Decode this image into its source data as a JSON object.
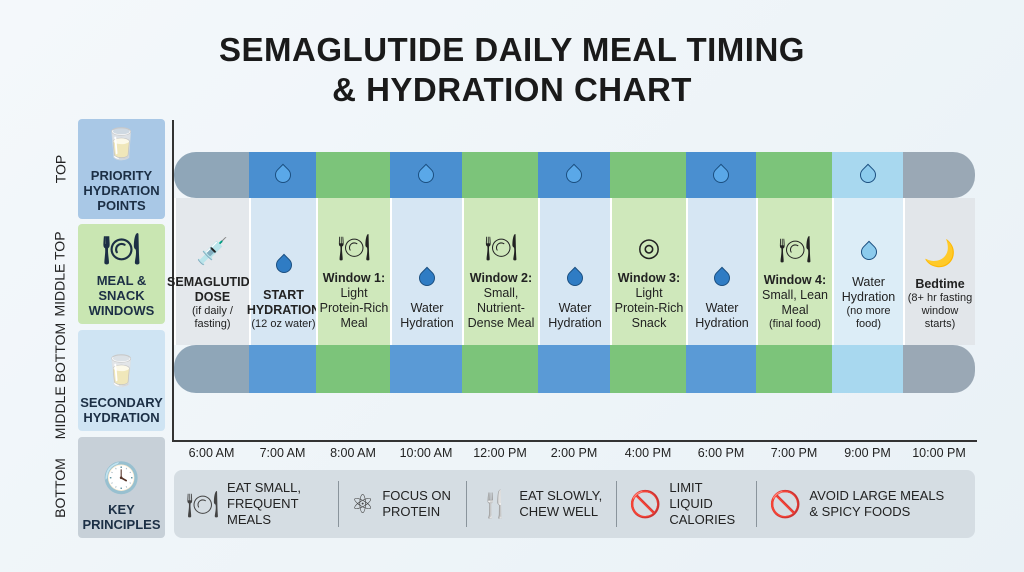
{
  "title_line1": "SEMAGLUTIDE DAILY MEAL TIMING",
  "title_line2": "& HYDRATION CHART",
  "rows": [
    {
      "side": "TOP",
      "label": "PRIORITY HYDRATION POINTS",
      "icon": "water-glass-icon",
      "color": "#a9c8e6"
    },
    {
      "side": "MIDDLE TOP",
      "label": "MEAL & SNACK WINDOWS",
      "icon": "plate-cutlery-icon",
      "color": "#c9e6b2"
    },
    {
      "side": "MIDDLE BOTTOM",
      "label": "SECONDARY HYDRATION",
      "icon": "water-glass-icon",
      "color": "#cfe4f3"
    },
    {
      "side": "BOTTOM",
      "label": "KEY PRINCIPLES",
      "icon": "clock-icon",
      "color": "#c7d0d8"
    }
  ],
  "columns": [
    {
      "time": "6:00 AM",
      "title": "SEMAGLUTIDE DOSE",
      "text": "",
      "sub": "(if daily / fasting)",
      "icon": "injection-pen-clock-icon",
      "type": "dose",
      "top": "#8fa6b8",
      "bg": "#e4e8ec",
      "bottom": "#8fa6b8"
    },
    {
      "time": "7:00 AM",
      "title": "START HYDRATION",
      "text": "",
      "sub": "(12 oz water)",
      "icon": "water-drop-icon",
      "type": "water",
      "top": "#4a8fd0",
      "bg": "#d6e6f3",
      "bottom": "#5a9ad6"
    },
    {
      "time": "8:00 AM",
      "title": "Window 1:",
      "text": "Light Protein-Rich Meal",
      "sub": "",
      "icon": "plate-cutlery-icon",
      "type": "meal",
      "top": "#7cc47a",
      "bg": "#cfe8bb",
      "bottom": "#7cc47a"
    },
    {
      "time": "10:00 AM",
      "title": "",
      "text": "Water Hydration",
      "sub": "",
      "icon": "water-drop-icon",
      "type": "water",
      "top": "#4a8fd0",
      "bg": "#d6e6f3",
      "bottom": "#5a9ad6"
    },
    {
      "time": "12:00 PM",
      "title": "Window 2:",
      "text": "Small, Nutrient-Dense Meal",
      "sub": "",
      "icon": "plate-cutlery-icon",
      "type": "meal",
      "top": "#7cc47a",
      "bg": "#cfe8bb",
      "bottom": "#7cc47a"
    },
    {
      "time": "2:00 PM",
      "title": "",
      "text": "Water Hydration",
      "sub": "",
      "icon": "water-drop-icon",
      "type": "water",
      "top": "#4a8fd0",
      "bg": "#d6e6f3",
      "bottom": "#5a9ad6"
    },
    {
      "time": "4:00 PM",
      "title": "Window 3:",
      "text": "Light Protein-Rich Snack",
      "sub": "",
      "icon": "plate-icon",
      "type": "meal",
      "top": "#7cc47a",
      "bg": "#cfe8bb",
      "bottom": "#7cc47a"
    },
    {
      "time": "6:00 PM",
      "title": "",
      "text": "Water Hydration",
      "sub": "",
      "icon": "water-drop-icon",
      "type": "water",
      "top": "#4a8fd0",
      "bg": "#d6e6f3",
      "bottom": "#5a9ad6"
    },
    {
      "time": "7:00 PM",
      "title": "Window 4:",
      "text": "Small, Lean Meal",
      "sub": "(final food)",
      "icon": "plate-cutlery-icon",
      "type": "meal",
      "top": "#7cc47a",
      "bg": "#cfe8bb",
      "bottom": "#7cc47a"
    },
    {
      "time": "9:00 PM",
      "title": "",
      "text": "Water Hydration",
      "sub": "(no more food)",
      "icon": "water-drop-icon",
      "type": "water-light",
      "top": "#a8d8ef",
      "bg": "#dcedf7",
      "bottom": "#a8d8ef"
    },
    {
      "time": "10:00 PM",
      "title": "Bedtime",
      "text": "",
      "sub": "(8+ hr fasting window starts)",
      "icon": "moon-sleep-icon",
      "type": "bed",
      "top": "#9aa8b5",
      "bg": "#e2e6ea",
      "bottom": "#9aa8b5"
    }
  ],
  "principles": [
    {
      "icon": "plate-cutlery-icon",
      "text": "EAT SMALL,\nFREQUENT MEALS"
    },
    {
      "icon": "molecule-icon",
      "text": "FOCUS ON\nPROTEIN"
    },
    {
      "icon": "cutlery-down-arrow-icon",
      "text": "EAT SLOWLY,\nCHEW WELL"
    },
    {
      "icon": "no-bottle-icon",
      "text": "LIMIT LIQUID\nCALORIES"
    },
    {
      "icon": "no-fast-food-icon",
      "text": "AVOID LARGE MEALS\n& SPICY FOODS"
    }
  ]
}
